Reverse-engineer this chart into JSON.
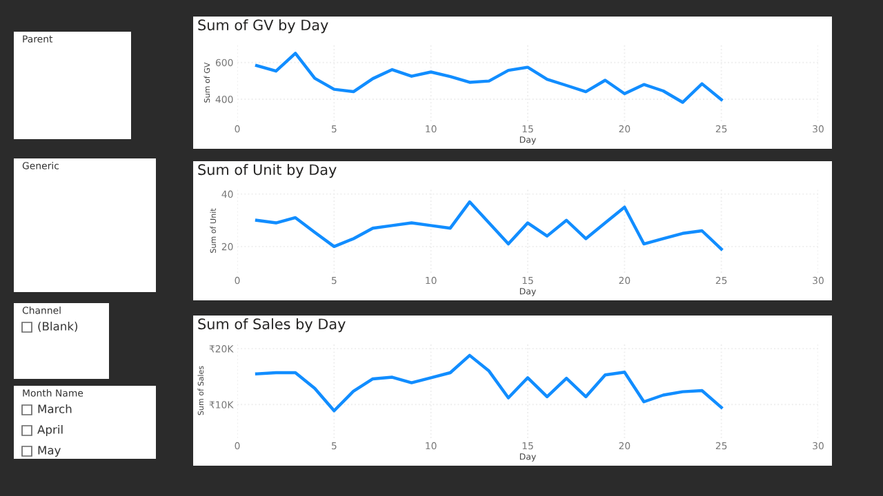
{
  "chart_data": [
    {
      "type": "line",
      "title": "Sum of GV by Day",
      "xlabel": "Day",
      "ylabel": "Sum of GV",
      "x": [
        1,
        2,
        3,
        4,
        5,
        6,
        7,
        8,
        9,
        10,
        11,
        12,
        13,
        14,
        15,
        16,
        17,
        18,
        19,
        20,
        21,
        22,
        23,
        24,
        25
      ],
      "series": [
        {
          "color": "#118dff",
          "values": [
            583,
            553,
            650,
            514,
            454,
            441,
            512,
            561,
            525,
            548,
            523,
            492,
            499,
            557,
            574,
            508,
            475,
            441,
            503,
            430,
            480,
            445,
            383,
            484,
            398
          ]
        }
      ],
      "xlim": [
        0,
        30
      ],
      "xticks": [
        0,
        5,
        10,
        15,
        20,
        25,
        30
      ],
      "ylim": [
        280,
        700
      ],
      "yticks": [
        400,
        600
      ],
      "grid": true,
      "marker": "none",
      "line_style": "solid"
    },
    {
      "type": "line",
      "title": "Sum of Unit by Day",
      "xlabel": "Day",
      "ylabel": "Sum of Unit",
      "x": [
        1,
        2,
        3,
        4,
        5,
        6,
        7,
        8,
        9,
        10,
        11,
        12,
        13,
        14,
        15,
        16,
        17,
        18,
        19,
        20,
        21,
        22,
        23,
        24,
        25
      ],
      "series": [
        {
          "color": "#118dff",
          "values": [
            30,
            29,
            31,
            25.4,
            20,
            23,
            27,
            28,
            29,
            28,
            27,
            37,
            29,
            21,
            29,
            24,
            30,
            23,
            29,
            35,
            21,
            23,
            25,
            26,
            19
          ]
        }
      ],
      "xlim": [
        0,
        30
      ],
      "xticks": [
        0,
        5,
        10,
        15,
        20,
        25,
        30
      ],
      "ylim": [
        10,
        42
      ],
      "yticks": [
        20,
        40
      ],
      "grid": true,
      "marker": "none",
      "line_style": "solid"
    },
    {
      "type": "line",
      "title": "Sum of Sales by Day",
      "xlabel": "Day",
      "ylabel": "Sum of Sales",
      "x": [
        1,
        2,
        3,
        4,
        5,
        6,
        7,
        8,
        9,
        10,
        11,
        12,
        13,
        14,
        15,
        16,
        17,
        18,
        19,
        20,
        21,
        22,
        23,
        24,
        25
      ],
      "series": [
        {
          "color": "#118dff",
          "values": [
            15500,
            15700,
            15700,
            12900,
            8900,
            12400,
            14600,
            14900,
            13900,
            14800,
            15700,
            18800,
            16000,
            11200,
            14800,
            11400,
            14700,
            11400,
            15300,
            15800,
            10500,
            11700,
            12300,
            12500,
            9500
          ]
        }
      ],
      "xlim": [
        0,
        30
      ],
      "xticks": [
        0,
        5,
        10,
        15,
        20,
        25,
        30
      ],
      "ylim": [
        4000,
        21000
      ],
      "yticks": [
        {
          "value": 10000,
          "label": "₹10K"
        },
        {
          "value": 20000,
          "label": "₹20K"
        }
      ],
      "grid": true,
      "marker": "none",
      "line_style": "solid"
    },
    {
      "type": "other",
      "title": "Parent"
    },
    {
      "type": "other",
      "title": "Generic"
    },
    {
      "type": "other",
      "title": "Channel",
      "annotations": [
        "(Blank)"
      ]
    },
    {
      "type": "other",
      "title": "Month Name",
      "annotations": [
        "March",
        "April",
        "May"
      ]
    }
  ]
}
